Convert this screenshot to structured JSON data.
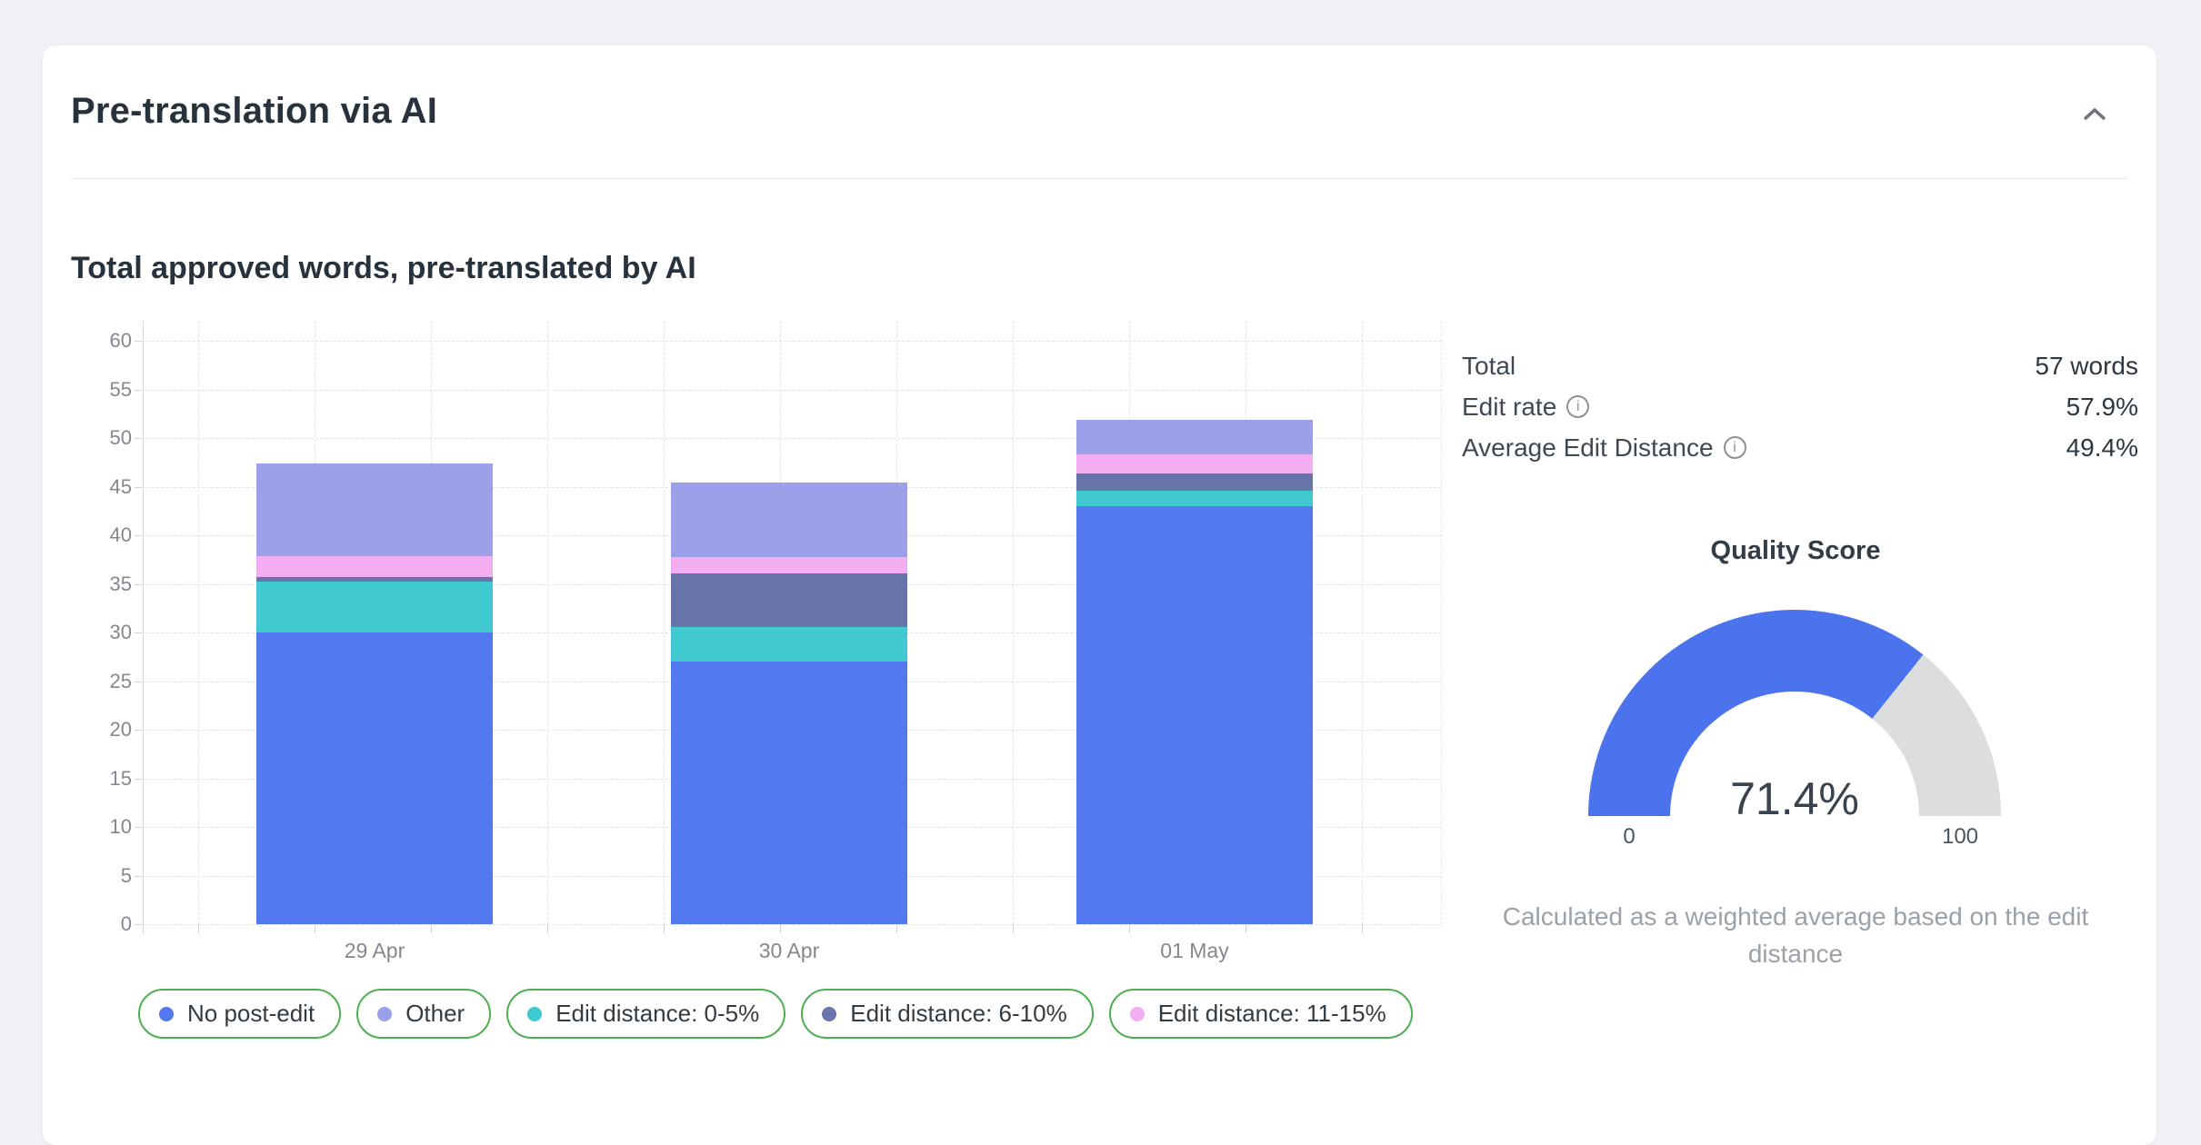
{
  "panel": {
    "title": "Pre-translation via AI",
    "section_title": "Total approved words, pre-translated by AI"
  },
  "chart_data": {
    "type": "bar",
    "stacked": true,
    "title": "Total approved words, pre-translated by AI",
    "categories": [
      "29 Apr",
      "30 Apr",
      "01 May"
    ],
    "series": [
      {
        "name": "No post-edit",
        "color": "#5478F0",
        "values": [
          30.0,
          27.0,
          43.0
        ]
      },
      {
        "name": "Edit distance: 0-5%",
        "color": "#41C9D1",
        "values": [
          5.2,
          3.6,
          1.6
        ]
      },
      {
        "name": "Edit distance: 6-10%",
        "color": "#6875AB",
        "values": [
          0.5,
          5.5,
          1.8
        ]
      },
      {
        "name": "Edit distance: 11-15%",
        "color": "#F3AEF2",
        "values": [
          2.2,
          1.7,
          1.9
        ]
      },
      {
        "name": "Other",
        "color": "#9BA0E9",
        "values": [
          9.5,
          7.6,
          3.6
        ]
      }
    ],
    "stack_order": "bottom-to-top as listed",
    "y_ticks": [
      0,
      5,
      10,
      15,
      20,
      25,
      30,
      35,
      40,
      45,
      50,
      55,
      60
    ],
    "ylim": [
      0,
      62
    ],
    "grid": true,
    "legend_position": "bottom"
  },
  "legend": {
    "items": [
      {
        "label": "No post-edit",
        "color": "#5478F0"
      },
      {
        "label": "Other",
        "color": "#9BA0E9"
      },
      {
        "label": "Edit distance: 0-5%",
        "color": "#41C9D1"
      },
      {
        "label": "Edit distance: 6-10%",
        "color": "#6875AB"
      },
      {
        "label": "Edit distance: 11-15%",
        "color": "#F3AEF2"
      }
    ],
    "border_color": "#4caf50"
  },
  "stats": {
    "rows": [
      {
        "label": "Total",
        "value": "57 words",
        "info_icon": false
      },
      {
        "label": "Edit rate",
        "value": "57.9%",
        "info_icon": true
      },
      {
        "label": "Average Edit Distance",
        "value": "49.4%",
        "info_icon": true
      }
    ]
  },
  "gauge": {
    "title": "Quality Score",
    "value": 71.4,
    "value_label": "71.4%",
    "min_label": "0",
    "max_label": "100",
    "fill_color": "#4B73EE",
    "track_color": "#DCDDDF",
    "caption": "Calculated as a weighted average based on the edit distance"
  },
  "icons": {
    "collapse": "chevron-up-icon",
    "info": "info-circle-icon"
  }
}
